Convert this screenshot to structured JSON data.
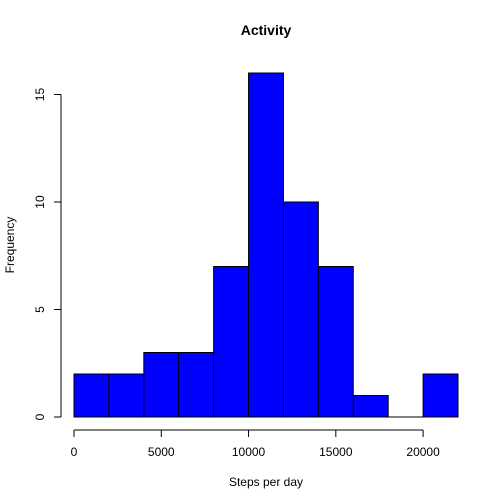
{
  "chart_data": {
    "type": "bar",
    "title": "Activity",
    "xlabel": "Steps per day",
    "ylabel": "Frequency",
    "bin_edges": [
      0,
      2000,
      4000,
      6000,
      8000,
      10000,
      12000,
      14000,
      16000,
      18000,
      20000,
      22000
    ],
    "values": [
      2,
      2,
      3,
      3,
      7,
      16,
      10,
      7,
      1,
      0,
      2
    ],
    "xlim": [
      0,
      22000
    ],
    "ylim": [
      0,
      16
    ],
    "x_ticks": [
      0,
      5000,
      10000,
      15000,
      20000
    ],
    "x_tick_labels": [
      "0",
      "5000",
      "10000",
      "15000",
      "20000"
    ],
    "y_ticks": [
      0,
      5,
      10,
      15
    ],
    "y_tick_labels": [
      "0",
      "5",
      "10",
      "15"
    ],
    "bar_color": "#0000ff",
    "border_color": "#000000",
    "grid": false
  }
}
